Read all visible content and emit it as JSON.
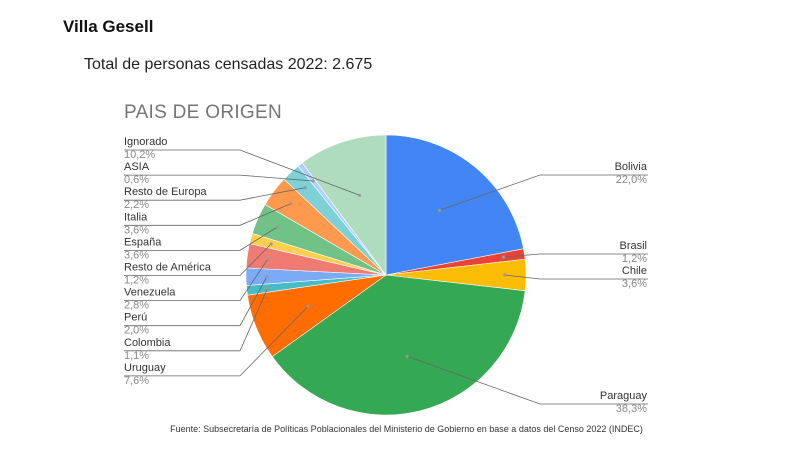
{
  "header": {
    "title": "Villa Gesell",
    "subtitle": "Total de personas censadas 2022: 2.675"
  },
  "chart_data": {
    "type": "pie",
    "title": "PAIS DE ORIGEN",
    "legend": "none",
    "slices": [
      {
        "label": "Bolivia",
        "pct_label": "22,0%",
        "value": 22.0,
        "color": "#4285f4"
      },
      {
        "label": "Brasil",
        "pct_label": "1,2%",
        "value": 1.2,
        "color": "#ea4335"
      },
      {
        "label": "Chile",
        "pct_label": "3,6%",
        "value": 3.6,
        "color": "#fbbc04"
      },
      {
        "label": "Paraguay",
        "pct_label": "38,3%",
        "value": 38.3,
        "color": "#34a853"
      },
      {
        "label": "Uruguay",
        "pct_label": "7,6%",
        "value": 7.6,
        "color": "#ff6d01"
      },
      {
        "label": "Colombia",
        "pct_label": "1,1%",
        "value": 1.1,
        "color": "#46bdc6"
      },
      {
        "label": "Perú",
        "pct_label": "2,0%",
        "value": 2.0,
        "color": "#7baaf7"
      },
      {
        "label": "Venezuela",
        "pct_label": "2,8%",
        "value": 2.8,
        "color": "#f07b72"
      },
      {
        "label": "Resto de América",
        "pct_label": "1,2%",
        "value": 1.2,
        "color": "#fcd04f"
      },
      {
        "label": "España",
        "pct_label": "3,6%",
        "value": 3.6,
        "color": "#71c287"
      },
      {
        "label": "Italia",
        "pct_label": "3,6%",
        "value": 3.6,
        "color": "#ff994d"
      },
      {
        "label": "Resto de Europa",
        "pct_label": "2,2%",
        "value": 2.2,
        "color": "#7ed1d7"
      },
      {
        "label": "ASIA",
        "pct_label": "0,6%",
        "value": 0.6,
        "color": "#b3cefb"
      },
      {
        "label": "Ignorado",
        "pct_label": "10,2%",
        "value": 10.2,
        "color": "#b0dcbe"
      }
    ]
  },
  "footer": {
    "source": "Fuente: Subsecretaría de Políticas Poblacionales del Ministerio de Gobierno en base a datos del Censo 2022 (INDEC)"
  }
}
